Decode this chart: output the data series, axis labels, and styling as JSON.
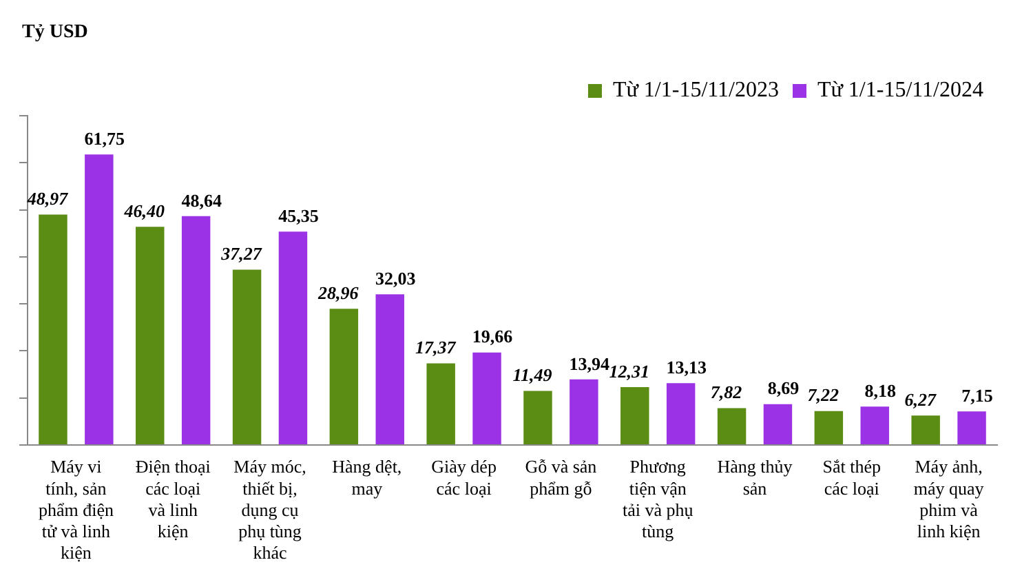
{
  "chart_data": {
    "type": "bar",
    "ylabel": "Tỷ USD",
    "categories": [
      "Máy vi tính, sản phẩm điện tử và linh kiện",
      "Điện thoại các loại và linh kiện",
      "Máy móc, thiết bị, dụng cụ phụ tùng khác",
      "Hàng dệt, may",
      "Giày dép các loại",
      "Gỗ và sản phẩm gỗ",
      "Phương tiện vận tải và phụ tùng",
      "Hàng thủy sản",
      "Sắt thép các loại",
      "Máy ảnh, máy quay phim và linh kiện"
    ],
    "series": [
      {
        "name": "Từ 1/1-15/11/2023",
        "color": "#5b8c14",
        "values": [
          48.97,
          46.4,
          37.27,
          28.96,
          17.37,
          11.49,
          12.31,
          7.82,
          7.22,
          6.27
        ],
        "value_labels": [
          "48,97",
          "46,40",
          "37,27",
          "28,96",
          "17,37",
          "11,49",
          "12,31",
          "7,82",
          "7,22",
          "6,27"
        ]
      },
      {
        "name": "Từ 1/1-15/11/2024",
        "color": "#9b32e6",
        "values": [
          61.75,
          48.64,
          45.35,
          32.03,
          19.66,
          13.94,
          13.13,
          8.69,
          8.18,
          7.15
        ],
        "value_labels": [
          "61,75",
          "48,64",
          "45,35",
          "32,03",
          "19,66",
          "13,94",
          "13,13",
          "8,69",
          "8,18",
          "7,15"
        ]
      }
    ],
    "ylim": [
      0,
      70
    ],
    "yticks": [
      {
        "value": 0,
        "label": null
      },
      {
        "value": 10,
        "label": null
      },
      {
        "value": 20,
        "label": null
      },
      {
        "value": 30,
        "label": null
      },
      {
        "value": 40,
        "label": null
      },
      {
        "value": 50,
        "label": null
      },
      {
        "value": 60,
        "label": null
      },
      {
        "value": 70,
        "label": null
      }
    ],
    "grid": false,
    "legend": "top right"
  }
}
